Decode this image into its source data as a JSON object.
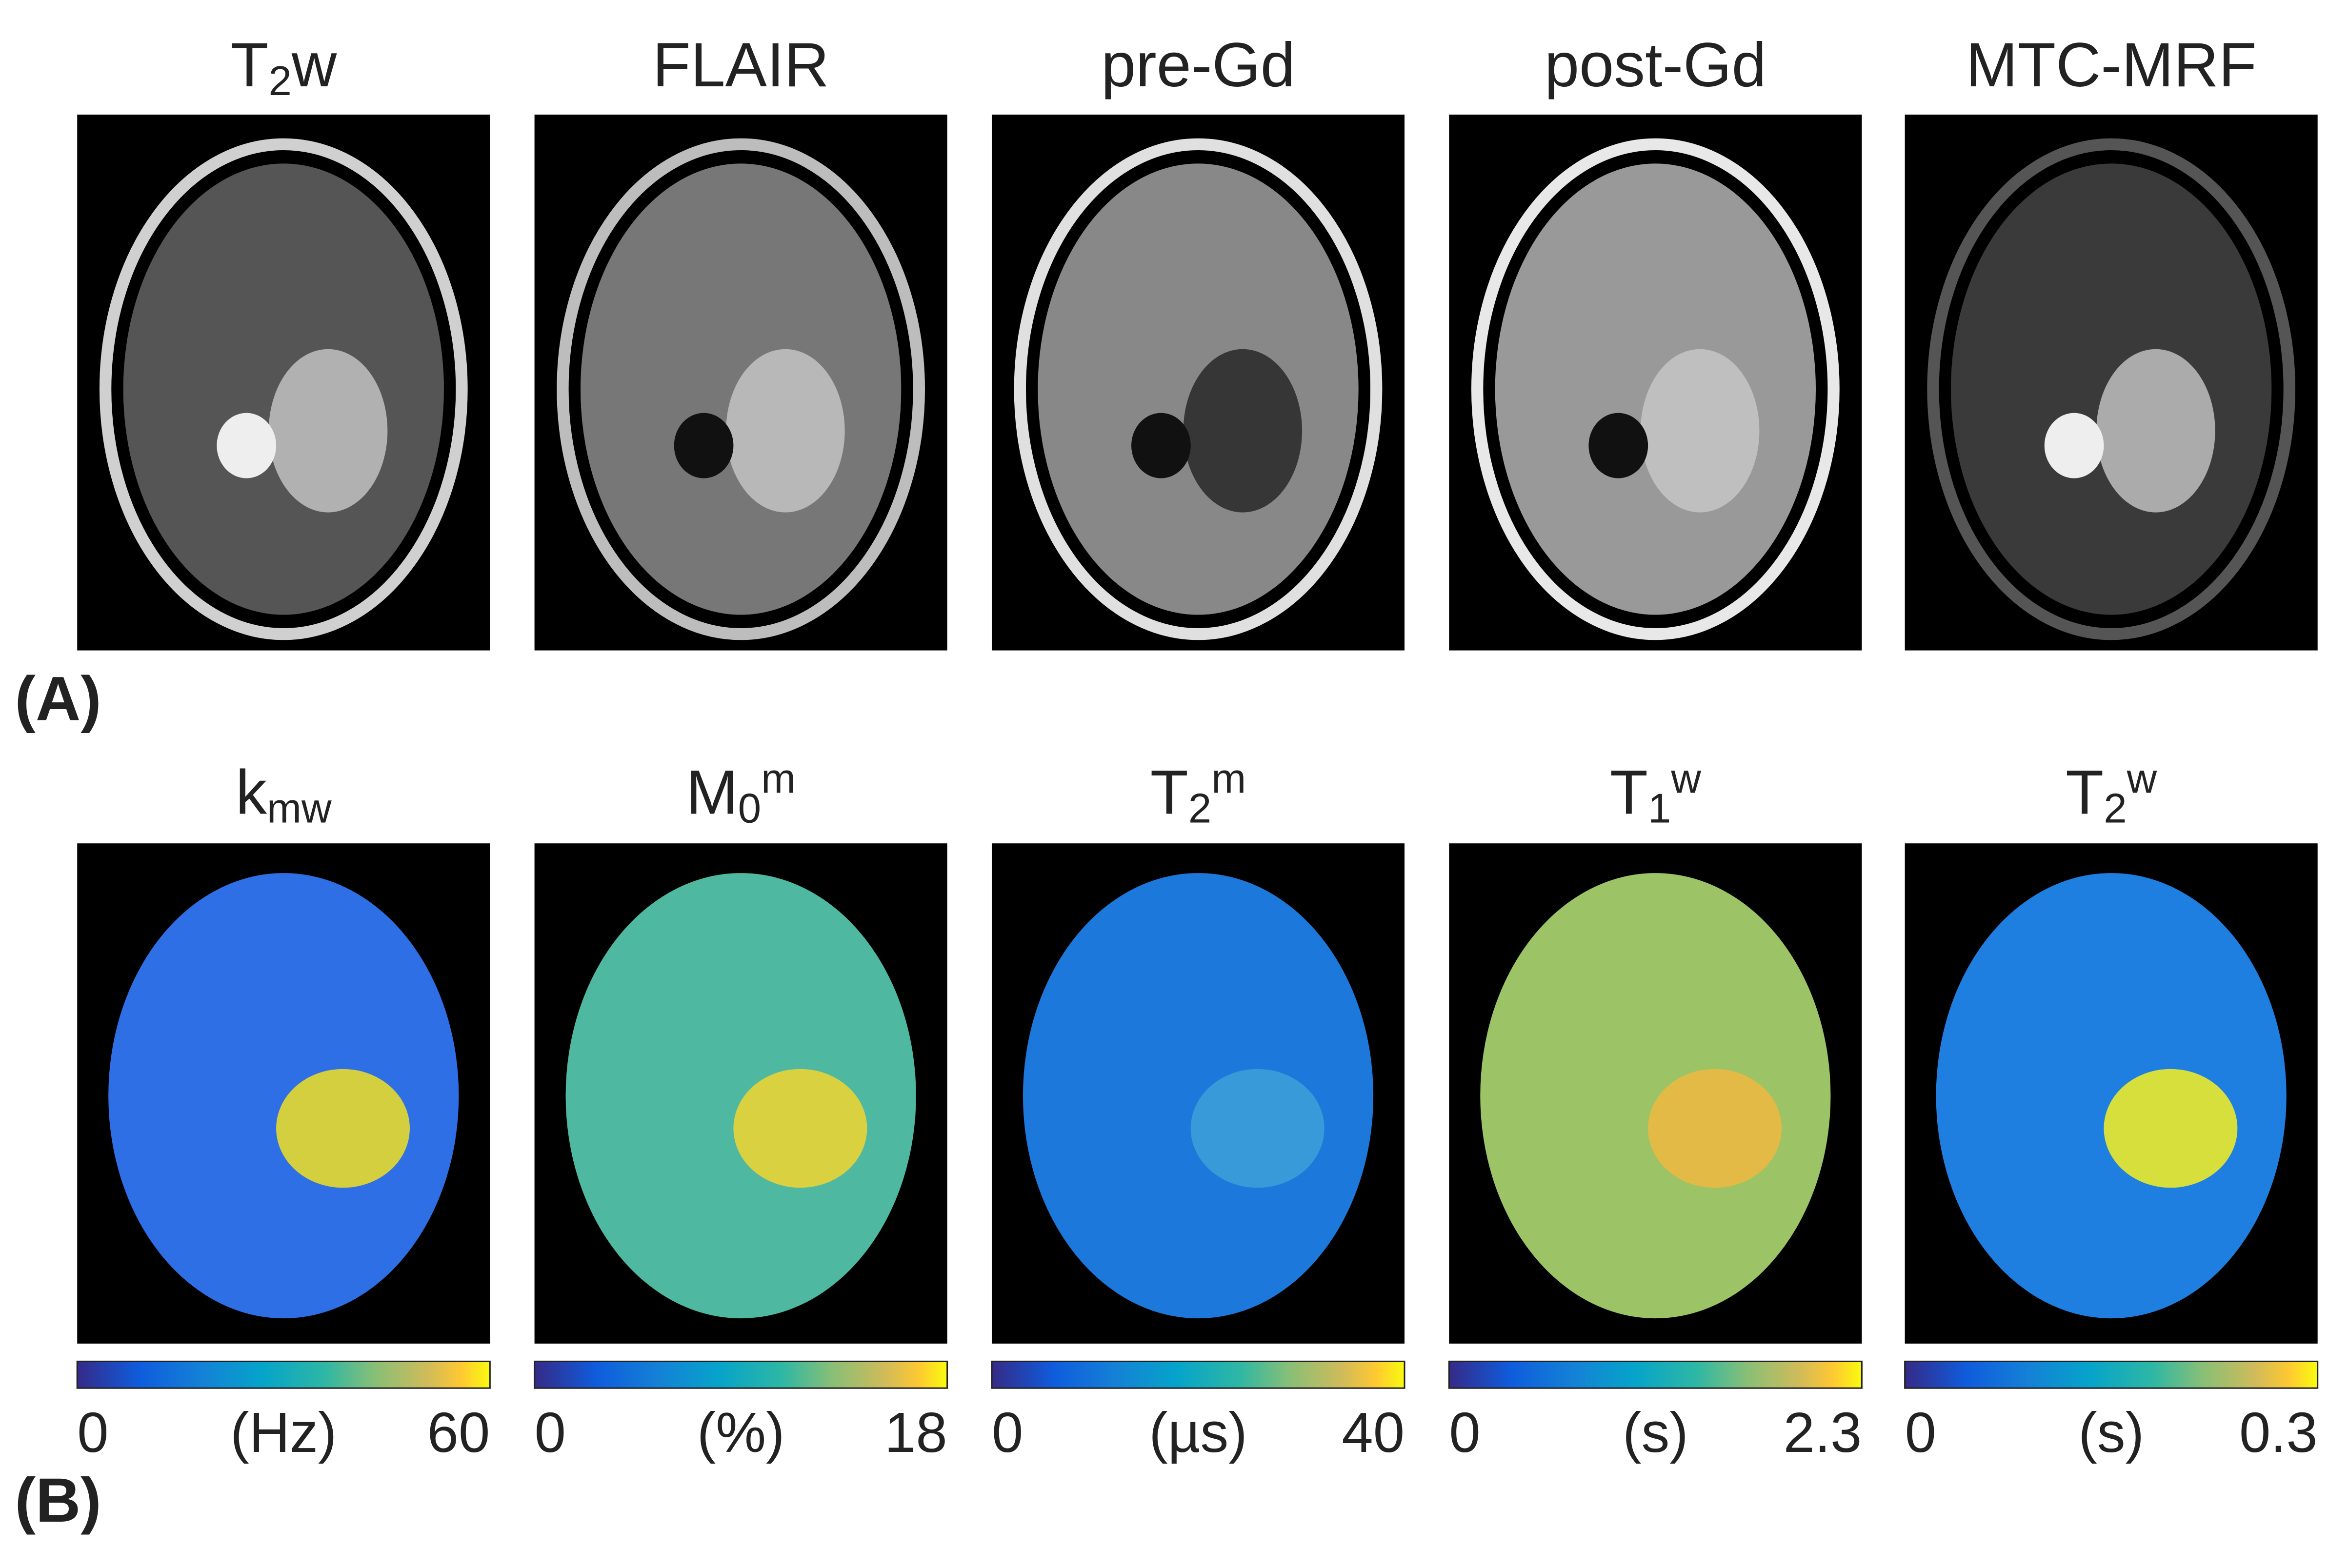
{
  "panel_a": {
    "label": "(A)",
    "images": [
      {
        "title": [
          {
            "text": "T"
          },
          {
            "text": "2",
            "script": "sub"
          },
          {
            "text": "w"
          }
        ]
      },
      {
        "title": [
          {
            "text": "FLAIR"
          }
        ]
      },
      {
        "title": [
          {
            "text": "pre-Gd"
          }
        ]
      },
      {
        "title": [
          {
            "text": "post-Gd"
          }
        ]
      },
      {
        "title": [
          {
            "text": "MTC-MRF"
          }
        ]
      }
    ]
  },
  "panel_b": {
    "label": "(B)",
    "maps": [
      {
        "title": [
          {
            "text": "k"
          },
          {
            "text": "mw",
            "script": "sub"
          }
        ],
        "colorbar": {
          "min": 0,
          "unit": "(Hz)",
          "max": 60
        }
      },
      {
        "title": [
          {
            "text": "M"
          },
          {
            "text": "0",
            "script": "sub"
          },
          {
            "text": "m",
            "script": "sup"
          }
        ],
        "colorbar": {
          "min": 0,
          "unit": "(%)",
          "max": 18
        }
      },
      {
        "title": [
          {
            "text": "T"
          },
          {
            "text": "2",
            "script": "sub"
          },
          {
            "text": "m",
            "script": "sup"
          }
        ],
        "colorbar": {
          "min": 0,
          "unit": "(µs)",
          "max": 40
        }
      },
      {
        "title": [
          {
            "text": "T"
          },
          {
            "text": "1",
            "script": "sub"
          },
          {
            "text": "w",
            "script": "sup"
          }
        ],
        "colorbar": {
          "min": 0,
          "unit": "(s)",
          "max": 2.3
        }
      },
      {
        "title": [
          {
            "text": "T"
          },
          {
            "text": "2",
            "script": "sub"
          },
          {
            "text": "w",
            "script": "sup"
          }
        ],
        "colorbar": {
          "min": 0,
          "unit": "(s)",
          "max": 0.3
        }
      }
    ]
  }
}
